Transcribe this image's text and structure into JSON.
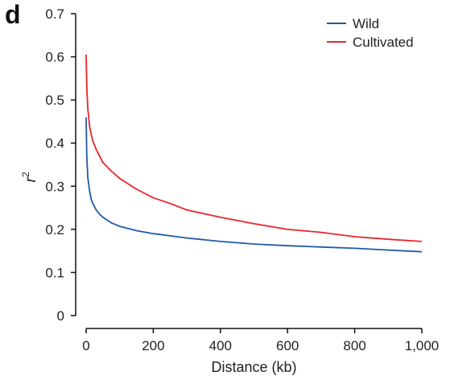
{
  "panel_label": "d",
  "chart_data": {
    "type": "line",
    "xlabel": "Distance (kb)",
    "ylabel": "r",
    "ylabel_superscript": "2",
    "xlim": [
      0,
      1000
    ],
    "ylim": [
      0,
      0.7
    ],
    "x_ticks": [
      0,
      200,
      400,
      600,
      800,
      1000
    ],
    "x_tick_labels": [
      "0",
      "200",
      "400",
      "600",
      "800",
      "1,000"
    ],
    "y_ticks": [
      0,
      0.1,
      0.2,
      0.3,
      0.4,
      0.5,
      0.6,
      0.7
    ],
    "y_tick_labels": [
      "0",
      "0.1",
      "0.2",
      "0.3",
      "0.4",
      "0.5",
      "0.6",
      "0.7"
    ],
    "grid": false,
    "legend_position": "top-right",
    "series": [
      {
        "name": "Wild",
        "color": "#1f5aa8",
        "x": [
          0,
          2,
          5,
          10,
          15,
          20,
          30,
          40,
          50,
          75,
          100,
          150,
          200,
          250,
          300,
          400,
          500,
          600,
          700,
          800,
          900,
          1000
        ],
        "y": [
          0.46,
          0.37,
          0.32,
          0.29,
          0.27,
          0.26,
          0.245,
          0.235,
          0.228,
          0.215,
          0.207,
          0.197,
          0.19,
          0.185,
          0.18,
          0.172,
          0.166,
          0.162,
          0.159,
          0.156,
          0.152,
          0.148
        ]
      },
      {
        "name": "Cultivated",
        "color": "#e8262b",
        "x": [
          0,
          2,
          5,
          10,
          15,
          20,
          30,
          40,
          50,
          75,
          100,
          150,
          200,
          250,
          300,
          400,
          500,
          600,
          700,
          800,
          900,
          1000
        ],
        "y": [
          0.605,
          0.53,
          0.48,
          0.44,
          0.42,
          0.405,
          0.385,
          0.37,
          0.355,
          0.335,
          0.318,
          0.293,
          0.273,
          0.26,
          0.245,
          0.228,
          0.213,
          0.2,
          0.193,
          0.183,
          0.177,
          0.172
        ]
      }
    ]
  }
}
